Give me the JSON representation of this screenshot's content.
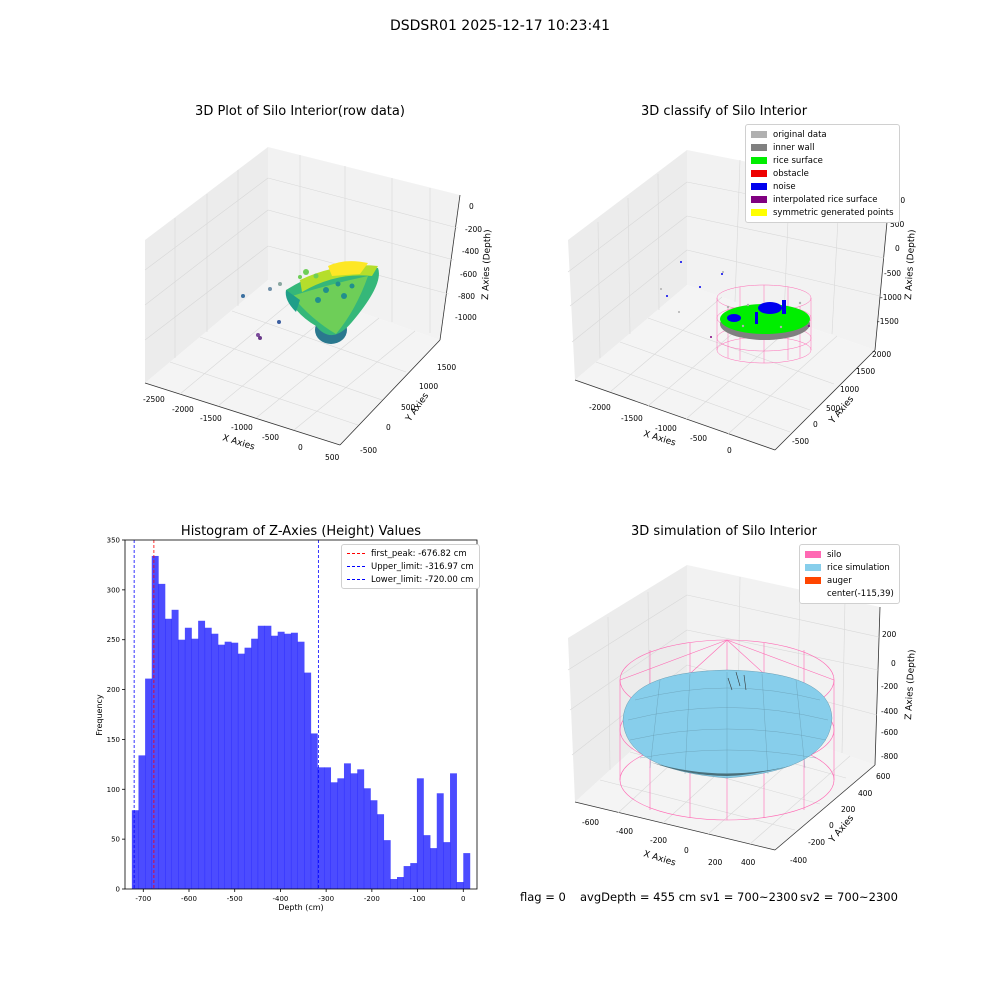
{
  "figure": {
    "suptitle": "DSDSR01 2025-12-17 10:23:41",
    "status": {
      "flag": "flag = 0",
      "avg_depth": "avgDepth = 455 cm",
      "sv1": "sv1 = 700~2300",
      "sv2": "sv2 = 700~2300"
    }
  },
  "panels": {
    "raw": {
      "title": "3D Plot of Silo Interior(row data)",
      "xlabel": "X Axies",
      "ylabel": "Y Axies",
      "zlabel": "Z Axies (Depth)",
      "xticks": [
        "-2500",
        "-2000",
        "-1500",
        "-1000",
        "-500",
        "0",
        "500"
      ],
      "yticks": [
        "-500",
        "0",
        "500",
        "1000",
        "1500"
      ],
      "zticks": [
        "0",
        "-200",
        "-400",
        "-600",
        "-800",
        "-1000"
      ]
    },
    "classify": {
      "title": "3D classify of Silo Interior",
      "xlabel": "X Axies",
      "ylabel": "Y Axies",
      "zlabel": "Z Axies (Depth)",
      "xticks": [
        "-2000",
        "-1500",
        "-1000",
        "-500",
        "0"
      ],
      "yticks": [
        "-500",
        "0",
        "500",
        "1000",
        "1500",
        "2000"
      ],
      "zticks": [
        "1000",
        "500",
        "0",
        "-500",
        "-1000",
        "-1500"
      ],
      "legend": [
        {
          "label": "original data",
          "color": "#b0b0b0"
        },
        {
          "label": "inner wall",
          "color": "#808080"
        },
        {
          "label": "rice surface",
          "color": "#00ee00"
        },
        {
          "label": "obstacle",
          "color": "#ee0000"
        },
        {
          "label": "noise",
          "color": "#0000ee"
        },
        {
          "label": "interpolated rice surface",
          "color": "#800080"
        },
        {
          "label": "symmetric generated points",
          "color": "#ffff00"
        }
      ]
    },
    "simulation": {
      "title": "3D simulation of Silo Interior",
      "xlabel": "X Axies",
      "ylabel": "Y Axies",
      "zlabel": "Z Axies (Depth)",
      "xticks": [
        "-600",
        "-400",
        "-200",
        "0",
        "200",
        "400"
      ],
      "yticks": [
        "600",
        "400",
        "200",
        "0",
        "-200",
        "-400"
      ],
      "zticks": [
        "200",
        "0",
        "-200",
        "-400",
        "-600",
        "-800"
      ],
      "legend": [
        {
          "label": "silo",
          "color": "#ff69b4"
        },
        {
          "label": "rice simulation",
          "color": "#87ceeb"
        },
        {
          "label": "auger",
          "color": "#ff4500"
        },
        {
          "label": "center(-115,39)",
          "color": ""
        }
      ]
    }
  },
  "chart_data": {
    "type": "bar",
    "title": "Histogram of Z-Axies (Height) Values",
    "xlabel": "Depth (cm)",
    "ylabel": "Frequency",
    "xlim": [
      -740,
      30
    ],
    "ylim": [
      0,
      350
    ],
    "xticks": [
      -700,
      -600,
      -500,
      -400,
      -300,
      -200,
      -100,
      0
    ],
    "yticks": [
      0,
      50,
      100,
      150,
      200,
      250,
      300,
      350
    ],
    "bar_color": "#0000ff",
    "bin_start": -725,
    "bin_width": 14.5,
    "values": [
      79,
      134,
      211,
      334,
      306,
      271,
      280,
      250,
      262,
      251,
      269,
      262,
      256,
      245,
      248,
      247,
      236,
      242,
      251,
      264,
      264,
      254,
      258,
      256,
      257,
      248,
      217,
      156,
      122,
      122,
      107,
      111,
      126,
      116,
      120,
      101,
      89,
      75,
      49,
      10,
      12,
      23,
      26,
      111,
      54,
      41,
      96,
      47,
      116,
      7,
      36
    ],
    "vlines": [
      {
        "label": "first_peak: -676.82 cm",
        "x": -676.82,
        "color": "#ff0000"
      },
      {
        "label": "Upper_limit: -316.97 cm",
        "x": -316.97,
        "color": "#0000ff"
      },
      {
        "label": "Lower_limit: -720.00 cm",
        "x": -720.0,
        "color": "#0000ff"
      }
    ],
    "legend_position": "top-right",
    "grid": false
  }
}
